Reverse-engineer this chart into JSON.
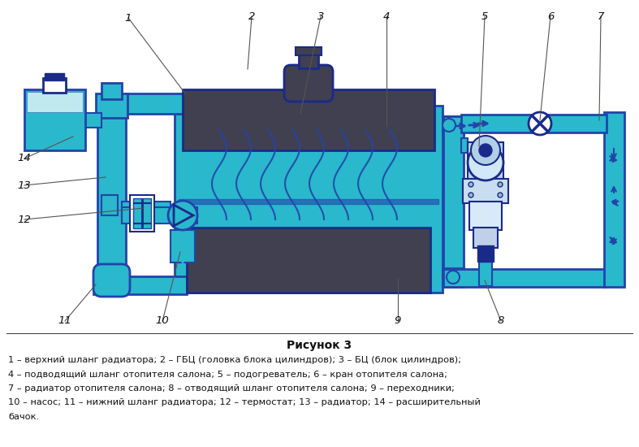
{
  "title": "Рисунок 3",
  "caption_lines": [
    "1 – верхний шланг радиатора; 2 – ГБЦ (головка блока цилиндров); 3 – БЦ (блок цилиндров);",
    "4 – подводящий шланг отопителя салона; 5 – подогреватель; 6 – кран отопителя салона;",
    "7 – радиатор отопителя салона; 8 – отводящий шланг отопителя салона; 9 – переходники;",
    "10 – насос; 11 – нижний шланг радиатора; 12 – термостат; 13 – радиатор; 14 – расширительный",
    "бачок."
  ],
  "bg_color": "#ffffff",
  "C": "#2ab8cc",
  "CL": "#4dcfdf",
  "DG": "#404050",
  "BD": "#1a2a8a",
  "BM": "#2244aa",
  "W": "#ffffff",
  "pipe_lw": 1.5,
  "annotations": [
    [
      "1",
      158,
      22,
      228,
      115
    ],
    [
      "2",
      310,
      20,
      305,
      85
    ],
    [
      "3",
      395,
      20,
      370,
      140
    ],
    [
      "4",
      476,
      20,
      476,
      155
    ],
    [
      "5",
      597,
      20,
      590,
      180
    ],
    [
      "6",
      678,
      20,
      665,
      148
    ],
    [
      "7",
      740,
      20,
      738,
      148
    ],
    [
      "8",
      617,
      395,
      597,
      345
    ],
    [
      "9",
      490,
      395,
      490,
      343
    ],
    [
      "10",
      200,
      395,
      222,
      310
    ],
    [
      "11",
      80,
      395,
      118,
      350
    ],
    [
      "12",
      30,
      270,
      177,
      256
    ],
    [
      "13",
      30,
      228,
      130,
      218
    ],
    [
      "14",
      30,
      195,
      90,
      168
    ]
  ]
}
